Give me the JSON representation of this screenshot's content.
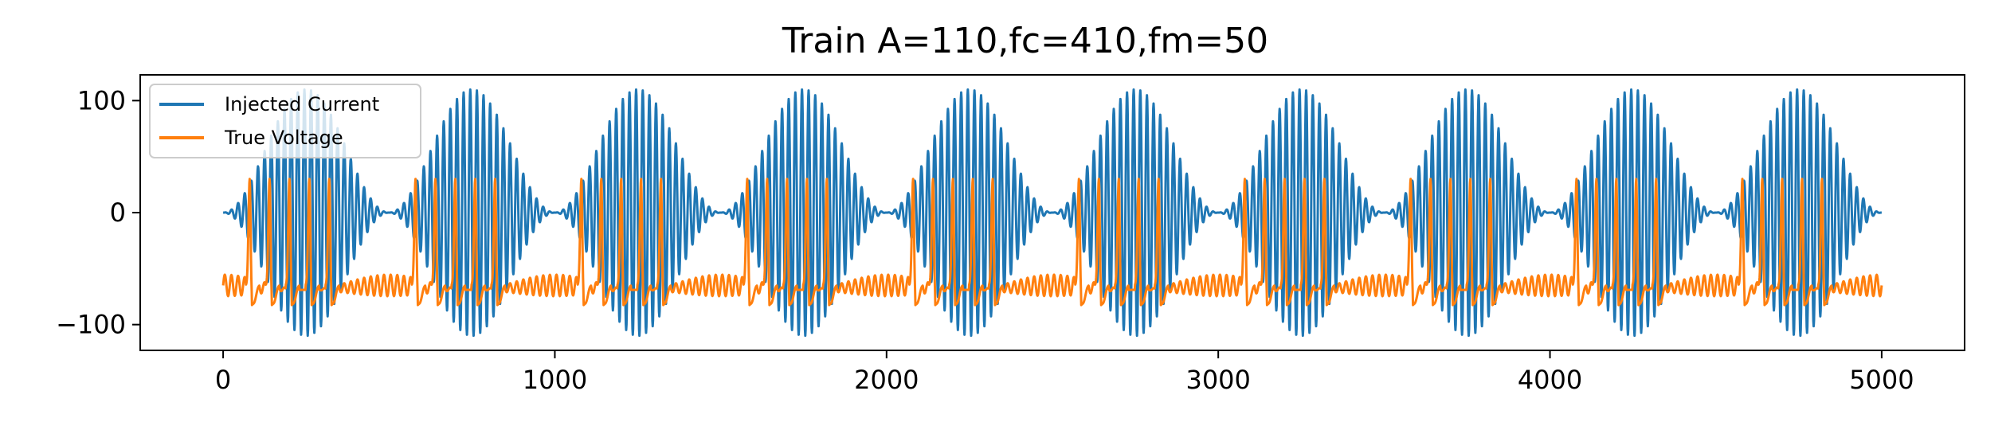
{
  "chart_data": {
    "type": "line",
    "title": "Train A=110,fc=410,fm=50",
    "xlabel": "",
    "ylabel": "",
    "xlim": [
      -250,
      5250
    ],
    "ylim": [
      -123,
      123
    ],
    "xticks": [
      0,
      1000,
      2000,
      3000,
      4000,
      5000
    ],
    "xtick_labels": [
      "0",
      "1000",
      "2000",
      "3000",
      "4000",
      "5000"
    ],
    "yticks": [
      100,
      0,
      -100
    ],
    "ytick_labels": [
      "100",
      "0",
      "−100"
    ],
    "grid": false,
    "legend": "top-left",
    "series": [
      {
        "name": "Injected Current",
        "color": "#1f77b4",
        "amplitude": 110,
        "carrier_period": 20,
        "envelope_period": 500,
        "x_range": [
          0,
          5000
        ]
      },
      {
        "name": "True Voltage",
        "color": "#ff7f0e",
        "rest_level": -65,
        "spike_peak": 30,
        "trough": -85,
        "spikes_per_burst": 5,
        "spike_interval": 60,
        "burst_period": 500,
        "x_range": [
          0,
          5000
        ]
      }
    ]
  }
}
